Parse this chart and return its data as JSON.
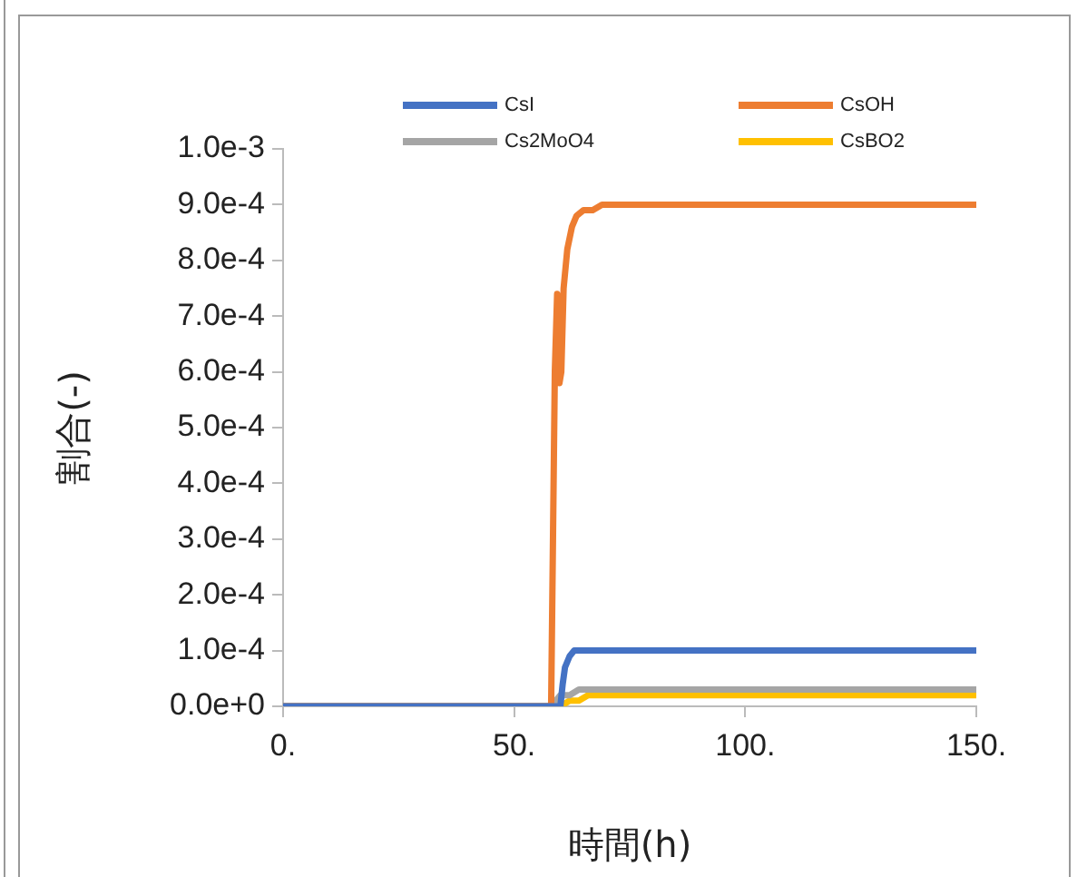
{
  "chart_data": {
    "type": "line",
    "xlabel": "時間(h)",
    "ylabel": "割合(-)",
    "legend": "top",
    "marker": "none",
    "grid": false,
    "xlim": [
      0,
      150
    ],
    "xticks": [
      {
        "value": 0,
        "label": "0."
      },
      {
        "value": 50,
        "label": "50."
      },
      {
        "value": 100,
        "label": "100."
      },
      {
        "value": 150,
        "label": "150."
      }
    ],
    "ylim": [
      0,
      0.001
    ],
    "yticks": [
      {
        "value": 0,
        "label": "0.0e+0"
      },
      {
        "value": 0.0001,
        "label": "1.0e-4"
      },
      {
        "value": 0.0002,
        "label": "2.0e-4"
      },
      {
        "value": 0.0003,
        "label": "3.0e-4"
      },
      {
        "value": 0.0004,
        "label": "4.0e-4"
      },
      {
        "value": 0.0005,
        "label": "5.0e-4"
      },
      {
        "value": 0.0006,
        "label": "6.0e-4"
      },
      {
        "value": 0.0007,
        "label": "7.0e-4"
      },
      {
        "value": 0.0008,
        "label": "8.0e-4"
      },
      {
        "value": 0.0009,
        "label": "9.0e-4"
      },
      {
        "value": 0.001,
        "label": "1.0e-3"
      }
    ],
    "series": [
      {
        "name": "CsI",
        "color": "#4472c4",
        "x": [
          0,
          58,
          60,
          60.5,
          61,
          62,
          63,
          65,
          70,
          150
        ],
        "values": [
          0,
          0,
          0,
          4e-05,
          7e-05,
          9e-05,
          0.0001,
          0.0001,
          0.0001,
          0.0001
        ]
      },
      {
        "name": "CsOH",
        "color": "#ed7d31",
        "x": [
          0,
          57,
          58,
          58.8,
          59.3,
          59.8,
          60.2,
          60.7,
          61.5,
          62.5,
          63.5,
          65,
          67,
          69,
          72,
          150
        ],
        "values": [
          0,
          0,
          0,
          0.0006,
          0.00074,
          0.00058,
          0.0006,
          0.00075,
          0.00082,
          0.00086,
          0.00088,
          0.00089,
          0.00089,
          0.0009,
          0.0009,
          0.0009
        ]
      },
      {
        "name": "Cs2MoO4",
        "color": "#a5a5a5",
        "x": [
          0,
          58,
          60,
          61,
          62,
          64,
          66,
          150
        ],
        "values": [
          0,
          0,
          2e-05,
          2e-05,
          2e-05,
          3e-05,
          3e-05,
          3e-05
        ]
      },
      {
        "name": "CsBO2",
        "color": "#ffc000",
        "x": [
          0,
          58,
          60,
          62,
          64,
          66,
          150
        ],
        "values": [
          0,
          0,
          0,
          1e-05,
          1e-05,
          2e-05,
          2e-05
        ]
      }
    ]
  }
}
